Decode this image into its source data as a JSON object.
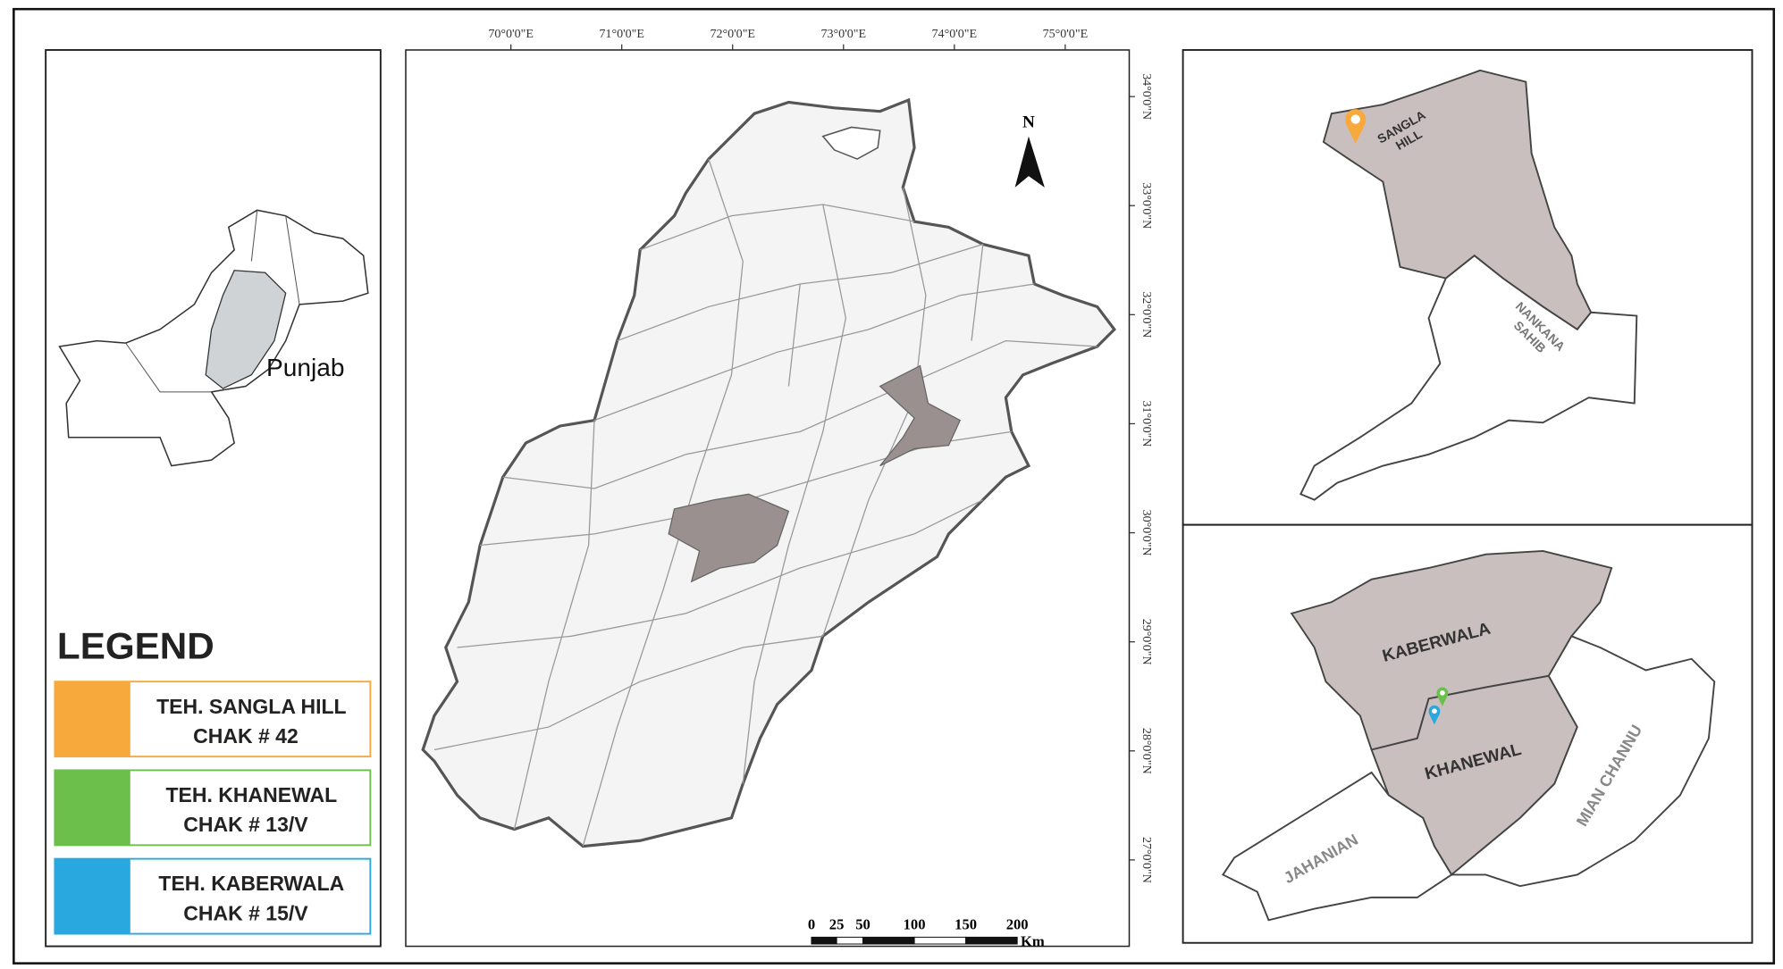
{
  "inset_pakistan": {
    "label": "Punjab"
  },
  "legend": {
    "title": "LEGEND",
    "items": [
      {
        "line1": "TEH. SANGLA HILL",
        "line2": "CHAK # 42",
        "color": "#f7a93b"
      },
      {
        "line1": "TEH. KHANEWAL",
        "line2": "CHAK # 13/V",
        "color": "#6cbf4a"
      },
      {
        "line1": "TEH. KABERWALA",
        "line2": "CHAK # 15/V",
        "color": "#29a8e0"
      }
    ]
  },
  "main_map": {
    "north": "N",
    "longitude_labels": [
      "70°0'0\"E",
      "71°0'0\"E",
      "72°0'0\"E",
      "73°0'0\"E",
      "74°0'0\"E",
      "75°0'0\"E"
    ],
    "latitude_labels": [
      "34°0'0\"N",
      "33°0'0\"N",
      "32°0'0\"N",
      "31°0'0\"N",
      "30°0'0\"N",
      "29°0'0\"N",
      "28°0'0\"N",
      "27°0'0\"N"
    ],
    "scale": {
      "ticks": [
        "0",
        "25",
        "50",
        "100",
        "150",
        "200"
      ],
      "unit": "Km"
    }
  },
  "sangla_map": {
    "sangla_hill": [
      "SANGLA",
      "HILL"
    ],
    "nankana_sahib": [
      "NANKANA",
      "SAHIB"
    ]
  },
  "khanewal_map": {
    "kaberwala": "KABERWALA",
    "khanewal": "KHANEWAL",
    "jahanian": "JAHANIAN",
    "mian_channu": "MIAN CHANNU"
  }
}
